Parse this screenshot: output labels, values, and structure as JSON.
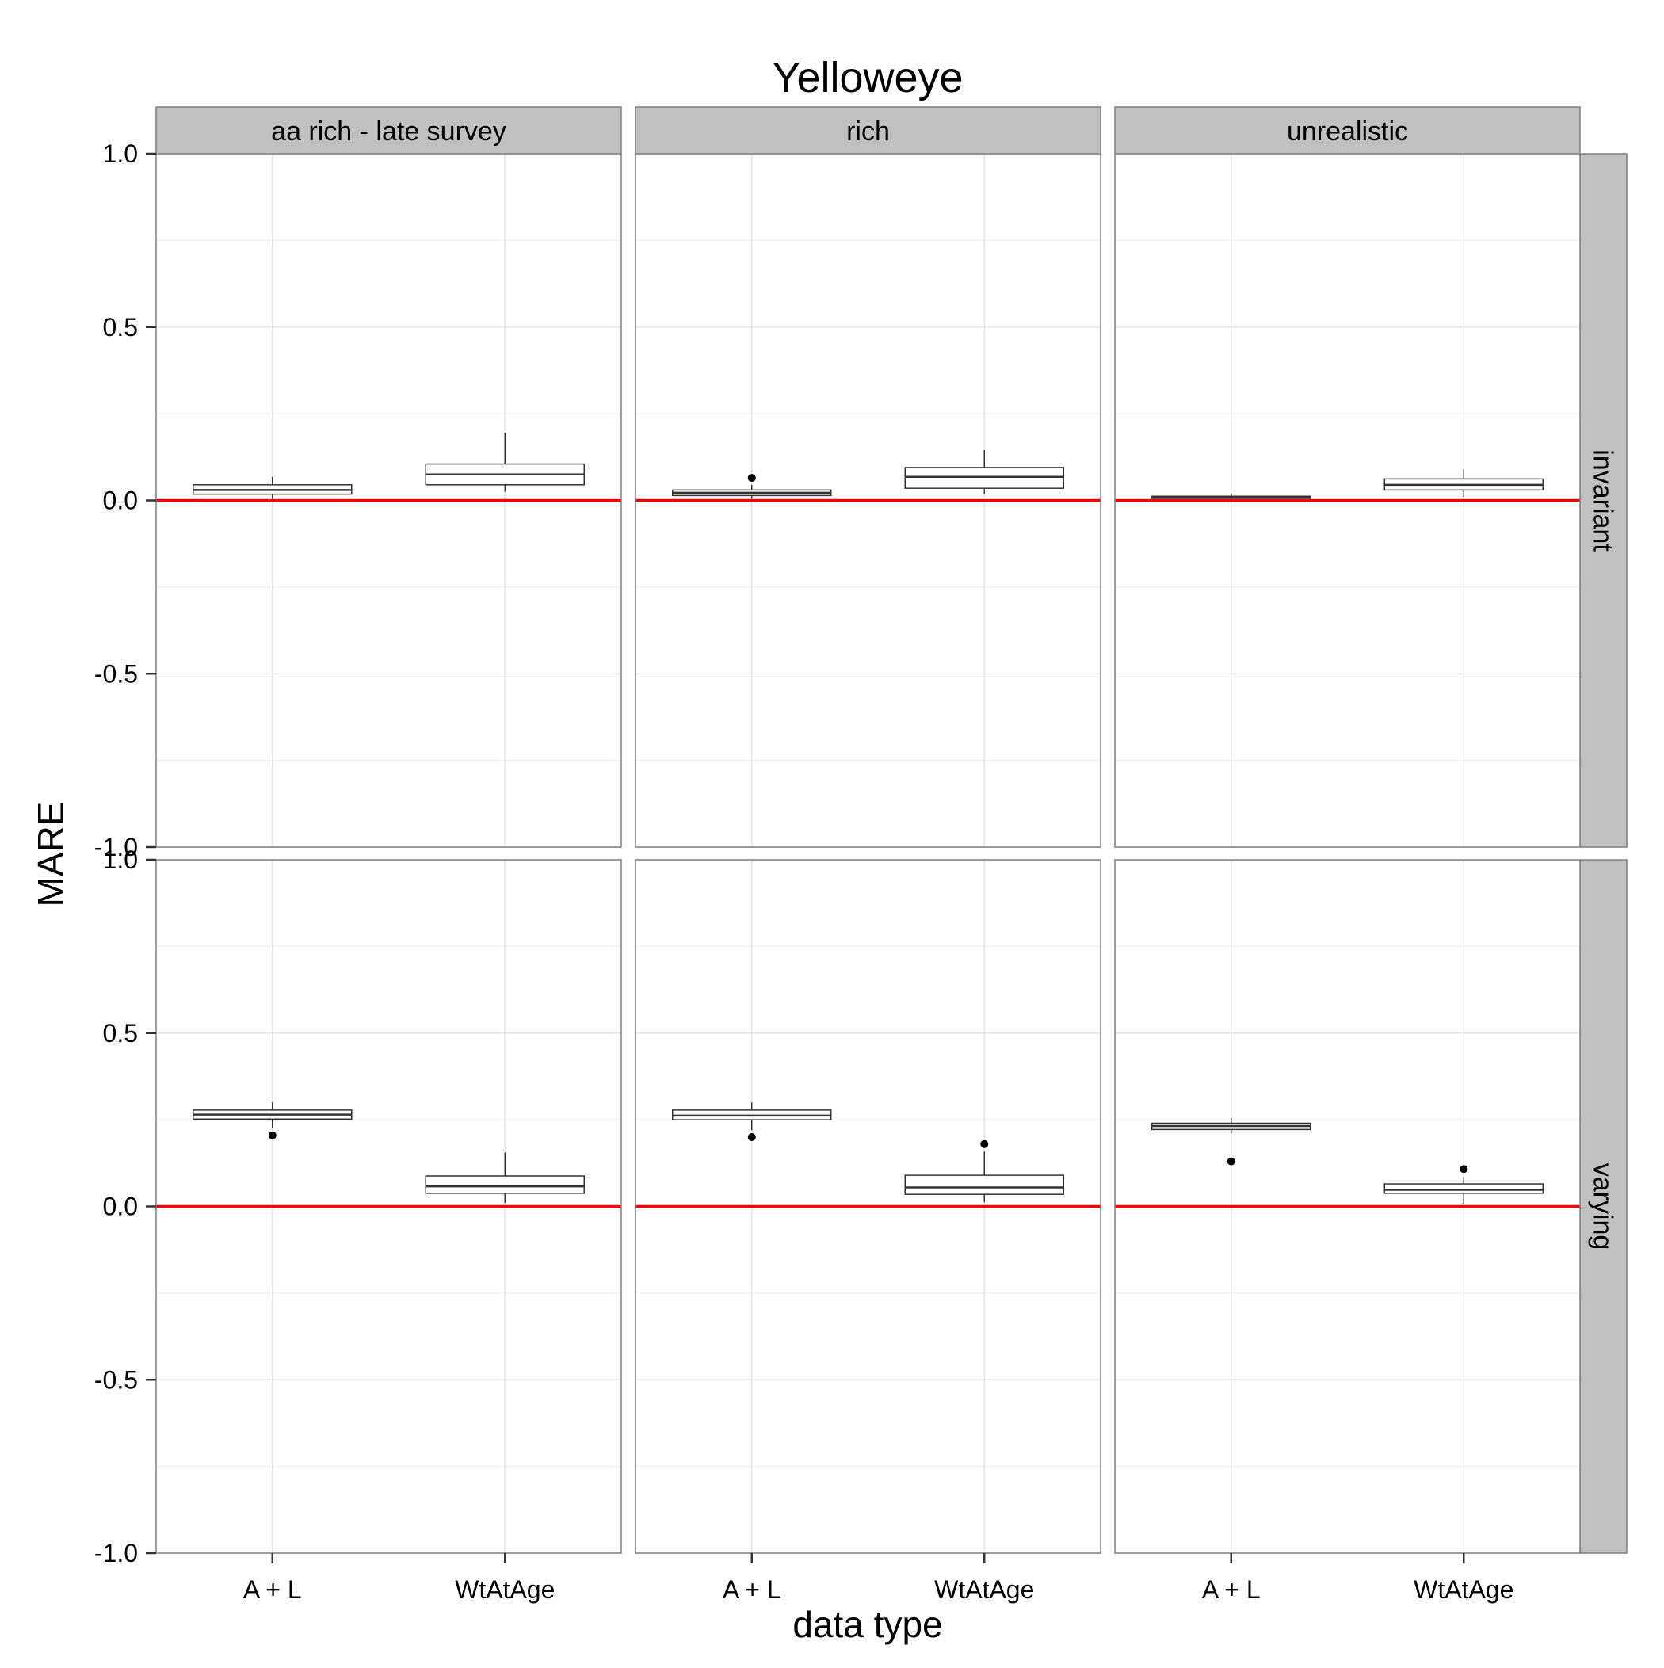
{
  "chart_data": {
    "type": "boxplot",
    "title": "Yelloweye",
    "xlabel": "data type",
    "ylabel": "MARE",
    "ylim": [
      -1.0,
      1.0
    ],
    "yticks": [
      "-1.0",
      "-0.5",
      "0.0",
      "0.5",
      "1.0"
    ],
    "categories": [
      "A + L",
      "WtAtAge"
    ],
    "columns": [
      "aa rich - late survey",
      "rich",
      "unrealistic"
    ],
    "rows": [
      "invariant",
      "varying"
    ],
    "reference_line": {
      "y": 0.0,
      "color": "#ff0000"
    },
    "grid": true,
    "colors": {
      "strip_fill": "#c0c0c0",
      "panel_border": "#7f7f7f",
      "grid_major": "#e5e5e5",
      "grid_minor": "#f3f3f3",
      "box_stroke": "#333333",
      "outlier": "#000000"
    },
    "panels": [
      {
        "row": "invariant",
        "column": "aa rich - late survey",
        "boxes": [
          {
            "category": "A + L",
            "whisker_low": 0.005,
            "q1": 0.018,
            "median": 0.03,
            "q3": 0.045,
            "whisker_high": 0.068,
            "outliers": []
          },
          {
            "category": "WtAtAge",
            "whisker_low": 0.025,
            "q1": 0.045,
            "median": 0.075,
            "q3": 0.105,
            "whisker_high": 0.195,
            "outliers": []
          }
        ]
      },
      {
        "row": "invariant",
        "column": "rich",
        "boxes": [
          {
            "category": "A + L",
            "whisker_low": 0.005,
            "q1": 0.014,
            "median": 0.022,
            "q3": 0.03,
            "whisker_high": 0.045,
            "outliers": [
              0.065
            ]
          },
          {
            "category": "WtAtAge",
            "whisker_low": 0.018,
            "q1": 0.035,
            "median": 0.068,
            "q3": 0.095,
            "whisker_high": 0.145,
            "outliers": []
          }
        ]
      },
      {
        "row": "invariant",
        "column": "unrealistic",
        "boxes": [
          {
            "category": "A + L",
            "whisker_low": 0.003,
            "q1": 0.006,
            "median": 0.009,
            "q3": 0.012,
            "whisker_high": 0.018,
            "outliers": []
          },
          {
            "category": "WtAtAge",
            "whisker_low": 0.01,
            "q1": 0.03,
            "median": 0.045,
            "q3": 0.062,
            "whisker_high": 0.09,
            "outliers": []
          }
        ]
      },
      {
        "row": "varying",
        "column": "aa rich - late survey",
        "boxes": [
          {
            "category": "A + L",
            "whisker_low": 0.225,
            "q1": 0.252,
            "median": 0.265,
            "q3": 0.278,
            "whisker_high": 0.3,
            "outliers": [
              0.205
            ]
          },
          {
            "category": "WtAtAge",
            "whisker_low": 0.01,
            "q1": 0.038,
            "median": 0.058,
            "q3": 0.088,
            "whisker_high": 0.155,
            "outliers": []
          }
        ]
      },
      {
        "row": "varying",
        "column": "rich",
        "boxes": [
          {
            "category": "A + L",
            "whisker_low": 0.22,
            "q1": 0.25,
            "median": 0.262,
            "q3": 0.278,
            "whisker_high": 0.3,
            "outliers": [
              0.2
            ]
          },
          {
            "category": "WtAtAge",
            "whisker_low": 0.012,
            "q1": 0.035,
            "median": 0.055,
            "q3": 0.09,
            "whisker_high": 0.158,
            "outliers": [
              0.18
            ]
          }
        ]
      },
      {
        "row": "varying",
        "column": "unrealistic",
        "boxes": [
          {
            "category": "A + L",
            "whisker_low": 0.21,
            "q1": 0.222,
            "median": 0.232,
            "q3": 0.24,
            "whisker_high": 0.255,
            "outliers": [
              0.13
            ]
          },
          {
            "category": "WtAtAge",
            "whisker_low": 0.008,
            "q1": 0.038,
            "median": 0.048,
            "q3": 0.065,
            "whisker_high": 0.085,
            "outliers": [
              0.108
            ]
          }
        ]
      }
    ]
  }
}
